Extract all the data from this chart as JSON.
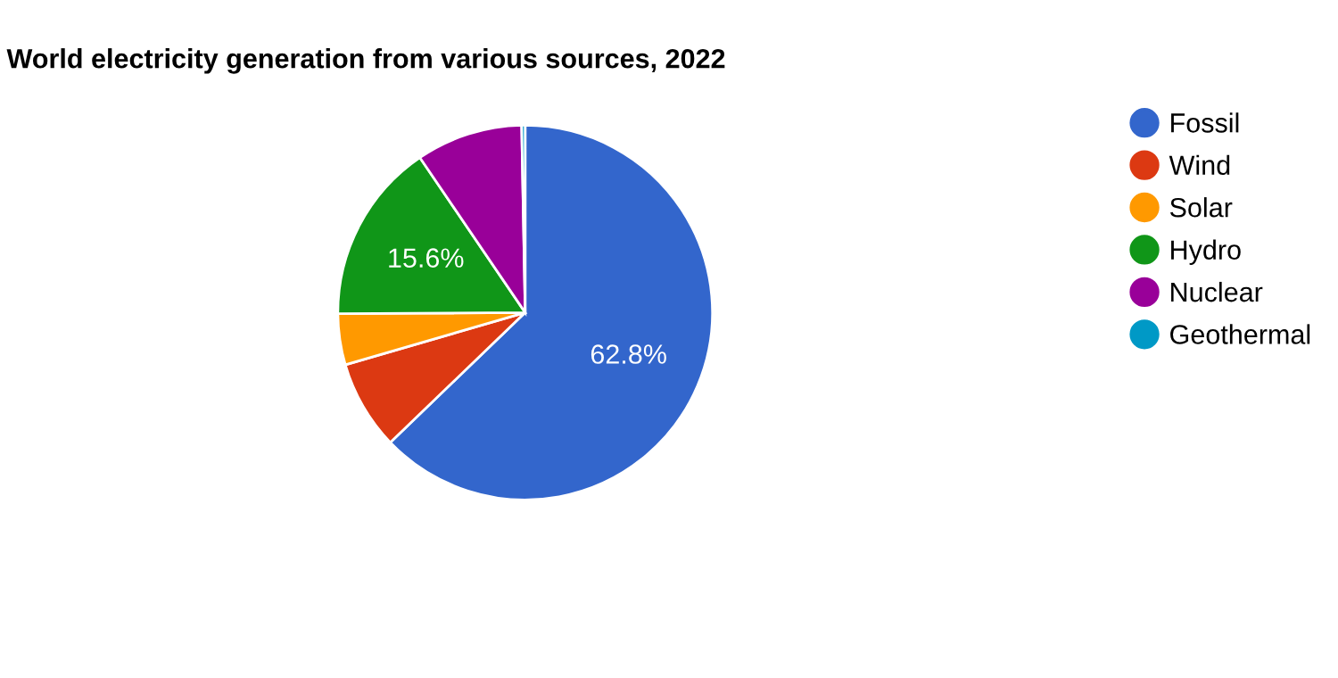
{
  "chart_data": {
    "type": "pie",
    "title": "World electricity generation from various sources, 2022",
    "categories": [
      "Fossil",
      "Wind",
      "Solar",
      "Hydro",
      "Nuclear",
      "Geothermal"
    ],
    "values": [
      62.8,
      7.7,
      4.4,
      15.6,
      9.2,
      0.3
    ],
    "value_labels": [
      "62.8%",
      null,
      null,
      "15.6%",
      null,
      null
    ],
    "colors": [
      "#3366cc",
      "#dc3912",
      "#ff9900",
      "#109618",
      "#990099",
      "#0099c6"
    ],
    "legend": "right"
  }
}
